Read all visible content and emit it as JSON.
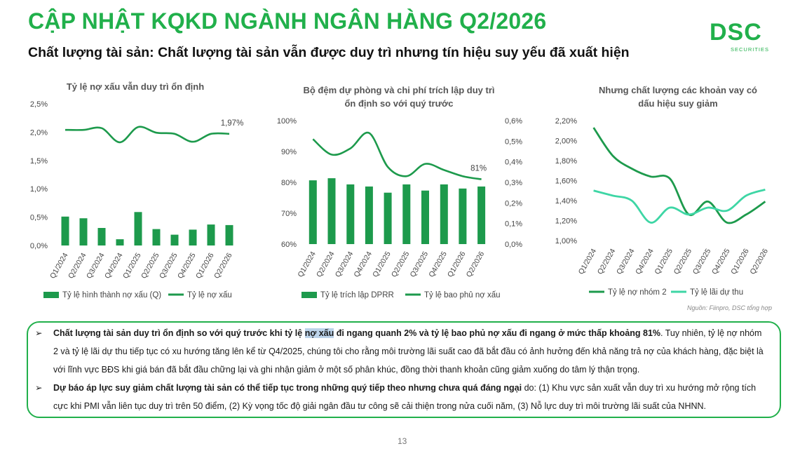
{
  "header": {
    "title": "CẬP NHẬT KQKD NGÀNH NGÂN HÀNG Q2/2026",
    "subtitle": "Chất lượng tài sản: Chất lượng tài sản vẫn được duy trì nhưng tín hiệu suy yếu đã xuất hiện",
    "logo_word": "DSC",
    "logo_sub": "SECURITIES"
  },
  "colors": {
    "brand_green": "#21b04b",
    "dark_green": "#1d9a4c",
    "light_green": "#3ed6a5"
  },
  "chart_data": [
    {
      "type": "bar+line",
      "title": "Tỷ lệ nợ xấu vẫn duy trì ổn định",
      "categories": [
        "Q1/2024",
        "Q2/2024",
        "Q3/2024",
        "Q4/2024",
        "Q1/2025",
        "Q2/2025",
        "Q3/2025",
        "Q4/2025",
        "Q1/2026",
        "Q2/2026"
      ],
      "series": [
        {
          "name": "Tỷ lệ hình thành nợ xấu (Q)",
          "kind": "bar",
          "color": "#1d9a4c",
          "values": [
            0.51,
            0.48,
            0.31,
            0.11,
            0.59,
            0.29,
            0.19,
            0.28,
            0.37,
            0.36
          ]
        },
        {
          "name": "Tỷ lệ nợ xấu",
          "kind": "line",
          "color": "#1d9a4c",
          "values": [
            2.04,
            2.04,
            2.07,
            1.82,
            2.09,
            1.99,
            1.97,
            1.83,
            1.97,
            1.97
          ]
        }
      ],
      "ylim": [
        0,
        2.5
      ],
      "yticks": [
        "0,0%",
        "0,5%",
        "1,0%",
        "1,5%",
        "2,0%",
        "2,5%"
      ],
      "data_label": "1,97%"
    },
    {
      "type": "bar+line",
      "title": "Bộ đệm dự phòng và chi phí trích lập duy trì ổn định so với quý trước",
      "categories": [
        "Q1/2024",
        "Q2/2024",
        "Q3/2024",
        "Q4/2024",
        "Q1/2025",
        "Q2/2025",
        "Q3/2025",
        "Q4/2025",
        "Q1/2026",
        "Q2/2026"
      ],
      "series": [
        {
          "name": "Tỷ lệ trích lập DPRR",
          "kind": "bar",
          "axis": "right",
          "color": "#1d9a4c",
          "values": [
            0.31,
            0.32,
            0.29,
            0.28,
            0.25,
            0.29,
            0.26,
            0.29,
            0.27,
            0.28
          ]
        },
        {
          "name": "Tỷ lệ bao phủ nợ xấu",
          "kind": "line",
          "axis": "left",
          "color": "#1d9a4c",
          "values": [
            94,
            89,
            91,
            96,
            85,
            82,
            86,
            84,
            82,
            81
          ]
        }
      ],
      "ylim_left": [
        60,
        100
      ],
      "ylim_right": [
        0,
        0.6
      ],
      "yticks_left": [
        "60%",
        "70%",
        "80%",
        "90%",
        "100%"
      ],
      "yticks_right": [
        "0,0%",
        "0,1%",
        "0,2%",
        "0,3%",
        "0,4%",
        "0,5%",
        "0,6%"
      ],
      "data_label": "81%"
    },
    {
      "type": "line",
      "title": "Nhưng chất lượng các khoản vay có dấu hiệu suy giảm",
      "categories": [
        "Q1/2024",
        "Q2/2024",
        "Q3/2024",
        "Q4/2024",
        "Q1/2025",
        "Q2/2025",
        "Q3/2025",
        "Q4/2025",
        "Q1/2026",
        "Q2/2026"
      ],
      "series": [
        {
          "name": "Tỷ lệ nợ nhóm 2",
          "color": "#1d9a4c",
          "values": [
            2.13,
            1.85,
            1.72,
            1.64,
            1.62,
            1.26,
            1.39,
            1.18,
            1.26,
            1.39
          ]
        },
        {
          "name": "Tỷ lệ lãi dự thu",
          "color": "#3ed6a5",
          "values": [
            1.5,
            1.45,
            1.4,
            1.18,
            1.33,
            1.26,
            1.33,
            1.3,
            1.45,
            1.51
          ]
        }
      ],
      "ylim": [
        1.0,
        2.2
      ],
      "yticks": [
        "1,00%",
        "1,20%",
        "1,40%",
        "1,60%",
        "1,80%",
        "2,00%",
        "2,20%"
      ]
    }
  ],
  "source_note": "Nguồn: Fiinpro, DSC tổng hợp",
  "commentary": {
    "bullet_symbol": "➢",
    "p1_bold_a": "Chất lượng tài sản duy trì ổn định so với quý trước khi tỷ lệ ",
    "p1_highlight": "nợ xấu",
    "p1_bold_b": " đi ngang quanh 2% và tỷ lệ bao phủ nợ xấu đi ngang ở mức thấp khoảng 81%",
    "p1_text": ". Tuy nhiên, tỷ lệ nợ nhóm 2 và tỷ lệ lãi dự thu tiếp tục có xu hướng tăng lên kể từ Q4/2025, chúng tôi cho rằng môi trường lãi suất cao đã bắt đầu có ảnh hưởng đến khả năng trả nợ của khách hàng, đặc biệt là với lĩnh vực BĐS khi giá bán đã bắt đầu chững lại và ghi nhận giảm ở một số phân khúc, đồng thời thanh khoản cũng giảm xuống do tâm lý thận trọng.",
    "p2_bold": "Dự báo áp lực suy giảm chất lượng tài sản có thể tiếp tục trong những quý tiếp theo nhưng chưa quá đáng ngại",
    "p2_text": " do: (1) Khu vực sản xuất vẫn duy trì xu hướng mở rộng tích cực khi PMI vẫn liên tục duy trì trên 50 điểm, (2) Kỳ vọng tốc độ giải ngân đầu tư công sẽ cải thiện trong nửa cuối năm, (3) Nỗ lực duy trì môi trường lãi suất của NHNN."
  },
  "page_number": "13"
}
